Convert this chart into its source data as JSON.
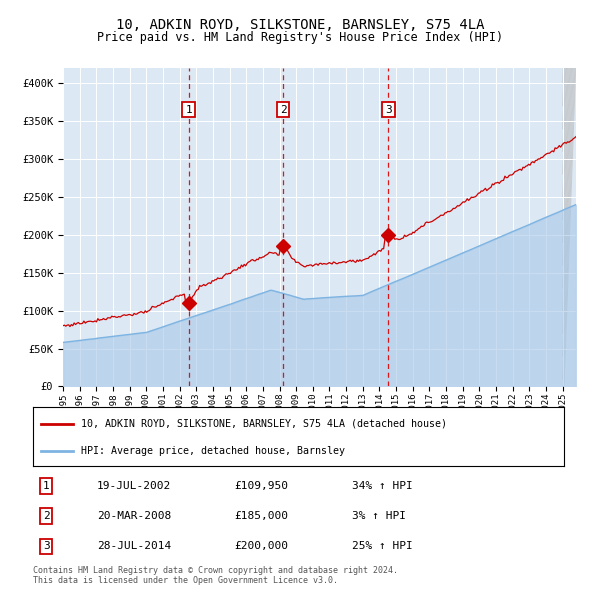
{
  "title": "10, ADKIN ROYD, SILKSTONE, BARNSLEY, S75 4LA",
  "subtitle": "Price paid vs. HM Land Registry's House Price Index (HPI)",
  "legend_line1": "10, ADKIN ROYD, SILKSTONE, BARNSLEY, S75 4LA (detached house)",
  "legend_line2": "HPI: Average price, detached house, Barnsley",
  "transactions": [
    {
      "num": 1,
      "date": "19-JUL-2002",
      "price": 109950,
      "pct": "34%",
      "direction": "↑",
      "year": 2002.54
    },
    {
      "num": 2,
      "date": "20-MAR-2008",
      "price": 185000,
      "pct": "3%",
      "direction": "↑",
      "year": 2008.22
    },
    {
      "num": 3,
      "date": "28-JUL-2014",
      "price": 200000,
      "pct": "25%",
      "direction": "↑",
      "year": 2014.54
    }
  ],
  "footer1": "Contains HM Land Registry data © Crown copyright and database right 2024.",
  "footer2": "This data is licensed under the Open Government Licence v3.0.",
  "hpi_color": "#a8c8e8",
  "hpi_line_color": "#7eb4e2",
  "price_color": "#cc0000",
  "plot_bg": "#dce9f5",
  "ylim": [
    0,
    420000
  ],
  "xlim_start": 1995.0,
  "xlim_end": 2025.8
}
